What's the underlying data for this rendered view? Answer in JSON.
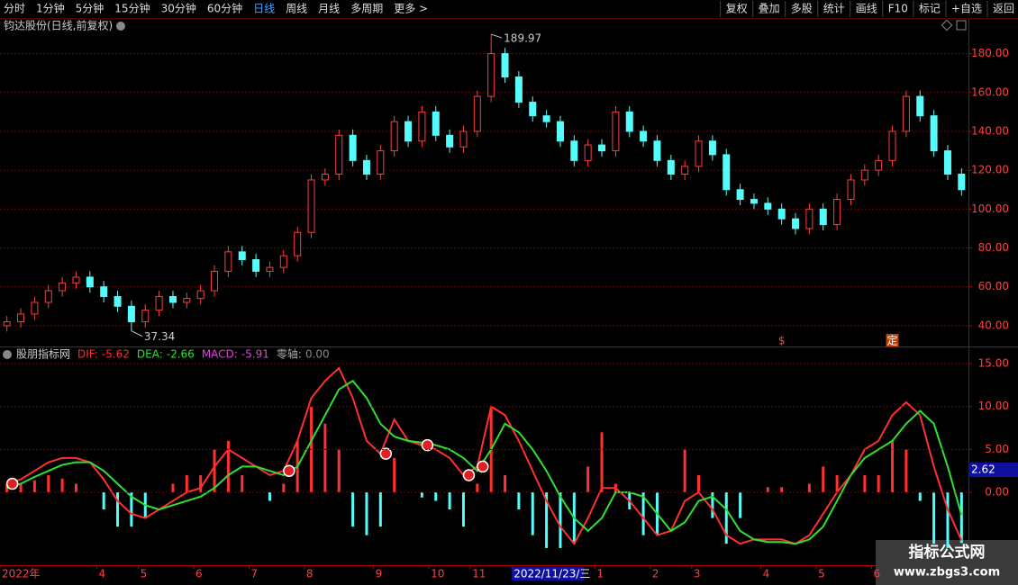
{
  "toolbar": {
    "left": [
      "分时",
      "1分钟",
      "5分钟",
      "15分钟",
      "30分钟",
      "60分钟",
      "日线",
      "周线",
      "月线",
      "多周期",
      "更多 >"
    ],
    "selected": 6,
    "right": [
      "复权",
      "叠加",
      "多股",
      "统计",
      "画线",
      "F10",
      "标记",
      "+自选",
      "返回"
    ]
  },
  "main_chart": {
    "type": "candlestick",
    "title": "钧达股份(日线,前复权)",
    "ylim": [
      29.3,
      190
    ],
    "yticks": [
      {
        "value": 40,
        "label": "40.00"
      },
      {
        "value": 60,
        "label": "60.00"
      },
      {
        "value": 80,
        "label": "80.00"
      },
      {
        "value": 100,
        "label": "100.00"
      },
      {
        "value": 120,
        "label": "120.00"
      },
      {
        "value": 140,
        "label": "140.00"
      },
      {
        "value": 160,
        "label": "160.00"
      },
      {
        "value": 180,
        "label": "180.00"
      }
    ],
    "up_color": "#ff3c3c",
    "down_color": "#54fcfc",
    "open": [
      40,
      42,
      46,
      52,
      58,
      62,
      65,
      60,
      55,
      50,
      42,
      48,
      55,
      52,
      54,
      58,
      68,
      78,
      74,
      68,
      70,
      76,
      88,
      115,
      118,
      138,
      125,
      118,
      130,
      145,
      135,
      150,
      138,
      132,
      140,
      158,
      180,
      168,
      155,
      148,
      145,
      135,
      125,
      133,
      130,
      150,
      140,
      135,
      125,
      118,
      122,
      135,
      128,
      110,
      105,
      103,
      100,
      95,
      90,
      100,
      92,
      105,
      115,
      120,
      125,
      140,
      158,
      148,
      130,
      118
    ],
    "close": [
      42,
      46,
      52,
      58,
      62,
      65,
      60,
      55,
      50,
      42,
      48,
      55,
      52,
      54,
      58,
      68,
      78,
      74,
      68,
      70,
      76,
      88,
      115,
      118,
      138,
      125,
      118,
      130,
      145,
      135,
      150,
      138,
      132,
      140,
      158,
      180,
      168,
      155,
      148,
      145,
      135,
      125,
      133,
      130,
      150,
      140,
      135,
      125,
      118,
      122,
      135,
      128,
      110,
      105,
      103,
      100,
      95,
      90,
      100,
      92,
      105,
      115,
      120,
      125,
      140,
      158,
      148,
      130,
      118,
      110
    ],
    "high": [
      45,
      49,
      55,
      61,
      65,
      68,
      68,
      63,
      58,
      53,
      51,
      58,
      58,
      57,
      61,
      71,
      81,
      81,
      77,
      73,
      79,
      91,
      118,
      121,
      141,
      141,
      128,
      133,
      148,
      148,
      153,
      153,
      141,
      143,
      161,
      189.97,
      183,
      171,
      158,
      151,
      148,
      138,
      136,
      136,
      153,
      153,
      143,
      138,
      128,
      125,
      138,
      138,
      131,
      113,
      108,
      106,
      103,
      98,
      103,
      103,
      108,
      118,
      123,
      128,
      143,
      161,
      161,
      151,
      133,
      121
    ],
    "low": [
      37,
      39,
      43,
      49,
      55,
      59,
      57,
      52,
      47,
      37.34,
      39,
      45,
      49,
      49,
      51,
      55,
      65,
      71,
      65,
      65,
      67,
      73,
      85,
      112,
      115,
      122,
      115,
      115,
      127,
      132,
      132,
      135,
      129,
      129,
      137,
      155,
      165,
      152,
      145,
      142,
      132,
      122,
      122,
      127,
      127,
      137,
      132,
      122,
      115,
      115,
      119,
      125,
      107,
      102,
      100,
      97,
      92,
      87,
      87,
      89,
      89,
      102,
      112,
      117,
      122,
      137,
      145,
      127,
      115,
      107
    ],
    "max_label_index": 35,
    "min_label_index": 9,
    "event_markers": [
      {
        "label": "$",
        "index": 56
      },
      {
        "label": "定",
        "index": 64
      }
    ]
  },
  "macd_chart": {
    "type": "macd",
    "title": "股朋指标网",
    "ylim": [
      -8.5,
      16.9
    ],
    "yticks": [
      {
        "value": 0,
        "label": "0.00"
      },
      {
        "value": 5,
        "label": "5.00"
      },
      {
        "value": 10,
        "label": "10.00"
      },
      {
        "value": 15,
        "label": "15.00"
      }
    ],
    "series": [
      {
        "name": "DIF:",
        "color": "#ff3030",
        "values": [
          1,
          1.5,
          2.5,
          3.5,
          4,
          4,
          3.5,
          1.5,
          -1,
          -2.5,
          -3,
          -2,
          -1,
          0,
          0.5,
          3,
          5,
          4,
          3,
          2,
          2.5,
          6,
          11,
          13,
          14.5,
          11,
          6,
          4.5,
          8.5,
          6,
          5.5,
          5,
          4,
          2,
          3,
          10,
          9,
          6,
          2.5,
          -1,
          -4,
          -6,
          -3,
          0.5,
          0.5,
          -1,
          -3,
          -5,
          -4.5,
          -1,
          0,
          -2,
          -5,
          -6,
          -5.5,
          -5.5,
          -5.5,
          -6,
          -5,
          -2.5,
          0,
          2,
          5,
          6,
          9,
          10.5,
          9,
          3,
          -2,
          -5.62
        ]
      },
      {
        "name": "DEA:",
        "color": "#30e030",
        "values": [
          0.5,
          1,
          1.8,
          2.5,
          3.2,
          3.5,
          3.5,
          2.5,
          1,
          -0.5,
          -1.5,
          -2,
          -1.5,
          -1,
          -0.5,
          0.5,
          2,
          3,
          3,
          2.5,
          2,
          3,
          6,
          9,
          12,
          13,
          11,
          8,
          6.5,
          6,
          5.8,
          5.5,
          5,
          4,
          2.5,
          5,
          8,
          7,
          5,
          2.5,
          -0.5,
          -3,
          -4.5,
          -3,
          0,
          0,
          -0.5,
          -2.5,
          -4.5,
          -3.5,
          -1,
          -0.5,
          -2,
          -4.5,
          -5.5,
          -5.8,
          -5.8,
          -6,
          -5.5,
          -4,
          -1,
          2,
          4,
          5,
          6,
          8,
          9.5,
          8,
          3,
          -2.66
        ]
      },
      {
        "name": "MACD:",
        "color": "#e040e0",
        "values": [
          1,
          1,
          1.4,
          2,
          1.6,
          1,
          0,
          -2,
          -4,
          -4,
          -3,
          0,
          1,
          2,
          2,
          5,
          6,
          2,
          0,
          -1,
          1,
          6,
          10,
          8,
          5,
          -4,
          -5,
          -4,
          4,
          0,
          -0.6,
          -1,
          -2,
          -4,
          1,
          10,
          2,
          -2,
          -5,
          -6.5,
          -6.5,
          -6,
          3,
          7,
          1,
          -2,
          -5,
          -5,
          0,
          5,
          2,
          -3,
          -6,
          -3,
          0,
          0.6,
          0.6,
          0,
          1,
          3,
          2,
          0,
          2,
          2,
          6,
          5,
          -1,
          -6,
          -6.5,
          -5.91
        ]
      }
    ],
    "zero_axis": {
      "name": "零轴:",
      "label": "0.00"
    },
    "signals": [
      0,
      20,
      27,
      30,
      33,
      34
    ],
    "cursor_value": 2.62
  },
  "x_axis": {
    "categories": [
      "2022年",
      null,
      null,
      null,
      null,
      null,
      null,
      "4",
      null,
      null,
      "5",
      null,
      null,
      null,
      "6",
      null,
      null,
      null,
      "7",
      null,
      null,
      null,
      "8",
      null,
      null,
      null,
      null,
      "9",
      null,
      null,
      null,
      "10",
      null,
      null,
      "11",
      null,
      null,
      "2022/11/23/三",
      null,
      null,
      null,
      null,
      null,
      "1",
      null,
      null,
      null,
      "2",
      null,
      null,
      "3",
      null,
      null,
      null,
      null,
      "4",
      null,
      null,
      null,
      "5",
      null,
      null,
      null,
      "6",
      null,
      null,
      null,
      null,
      null,
      null
    ],
    "highlight_index": 37
  },
  "watermark": {
    "title": "指标公式网",
    "url": "www.zbgs3.com"
  }
}
